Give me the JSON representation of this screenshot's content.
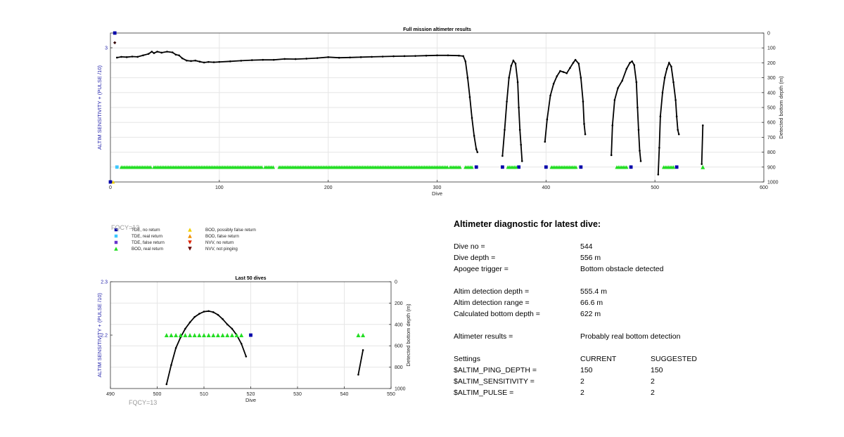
{
  "chart_data": [
    {
      "type": "line",
      "title": "Full mission altimeter results",
      "xlabel": "Dive",
      "ylabel_left": "ALTIM SENSITIVITY + (PULSE /10)",
      "ylabel_right": "Detected bottom depth (m)",
      "xlim": [
        0,
        600
      ],
      "y_left_ticks": [
        "3"
      ],
      "y_right_lim": [
        0,
        1000
      ],
      "y_right_reversed": true,
      "x_ticks": [
        "0",
        "100",
        "200",
        "300",
        "400",
        "500",
        "600"
      ],
      "y_right_ticks": [
        "0",
        "100",
        "200",
        "300",
        "400",
        "500",
        "600",
        "700",
        "800",
        "900",
        "1000"
      ],
      "grid": true,
      "series": [
        {
          "name": "Detected bottom depth",
          "kind": "line",
          "color": "#000000",
          "segments": [
            [
              [
                6,
                165
              ],
              [
                10,
                160
              ],
              [
                15,
                162
              ],
              [
                20,
                158
              ],
              [
                25,
                160
              ],
              [
                30,
                150
              ],
              [
                35,
                140
              ],
              [
                38,
                125
              ],
              [
                40,
                135
              ],
              [
                43,
                125
              ],
              [
                47,
                132
              ],
              [
                52,
                125
              ],
              [
                57,
                130
              ],
              [
                60,
                145
              ],
              [
                63,
                150
              ],
              [
                66,
                170
              ],
              [
                70,
                185
              ],
              [
                74,
                188
              ],
              [
                78,
                185
              ],
              [
                82,
                192
              ],
              [
                86,
                198
              ],
              [
                90,
                194
              ],
              [
                95,
                196
              ],
              [
                100,
                194
              ],
              [
                110,
                190
              ],
              [
                120,
                186
              ],
              [
                130,
                182
              ],
              [
                140,
                180
              ],
              [
                150,
                180
              ],
              [
                160,
                174
              ],
              [
                170,
                175
              ],
              [
                180,
                172
              ],
              [
                190,
                168
              ],
              [
                200,
                162
              ],
              [
                210,
                166
              ],
              [
                220,
                164
              ],
              [
                230,
                162
              ],
              [
                240,
                160
              ],
              [
                250,
                158
              ],
              [
                260,
                156
              ],
              [
                270,
                155
              ],
              [
                280,
                154
              ],
              [
                290,
                152
              ],
              [
                300,
                150
              ],
              [
                310,
                150
              ],
              [
                320,
                152
              ],
              [
                324,
                155
              ],
              [
                326,
                190
              ],
              [
                328,
                300
              ],
              [
                330,
                430
              ],
              [
                332,
                570
              ],
              [
                334,
                690
              ],
              [
                336,
                780
              ],
              [
                337,
                800
              ]
            ],
            [
              [
                360,
                825
              ],
              [
                362,
                650
              ],
              [
                364,
                460
              ],
              [
                366,
                300
              ],
              [
                368,
                220
              ],
              [
                370,
                185
              ],
              [
                372,
                205
              ],
              [
                374,
                330
              ],
              [
                375,
                500
              ],
              [
                376,
                650
              ],
              [
                377,
                750
              ],
              [
                378,
                860
              ]
            ],
            [
              [
                399,
                730
              ],
              [
                401,
                580
              ],
              [
                404,
                420
              ],
              [
                407,
                340
              ],
              [
                410,
                290
              ],
              [
                413,
                255
              ],
              [
                416,
                262
              ],
              [
                419,
                270
              ],
              [
                422,
                235
              ],
              [
                425,
                200
              ],
              [
                427,
                180
              ],
              [
                430,
                205
              ],
              [
                432,
                300
              ],
              [
                434,
                460
              ],
              [
                435,
                610
              ],
              [
                436,
                680
              ]
            ],
            [
              [
                460,
                820
              ],
              [
                461,
                620
              ],
              [
                463,
                450
              ],
              [
                466,
                370
              ],
              [
                470,
                320
              ],
              [
                474,
                240
              ],
              [
                477,
                200
              ],
              [
                479,
                190
              ],
              [
                481,
                215
              ],
              [
                483,
                330
              ],
              [
                484,
                500
              ],
              [
                485,
                650
              ],
              [
                486,
                790
              ],
              [
                487,
                860
              ]
            ],
            [
              [
                503,
                950
              ],
              [
                504,
                770
              ],
              [
                505,
                560
              ],
              [
                507,
                400
              ],
              [
                509,
                300
              ],
              [
                511,
                240
              ],
              [
                513,
                200
              ],
              [
                515,
                225
              ],
              [
                517,
                330
              ],
              [
                519,
                450
              ],
              [
                520,
                560
              ],
              [
                521,
                650
              ],
              [
                522,
                680
              ]
            ],
            [
              [
                543,
                880
              ],
              [
                544,
                620
              ]
            ]
          ]
        },
        {
          "name": "TDE, no return",
          "kind": "square",
          "color": "#0000aa",
          "points": [
            [
              4,
              0
            ],
            [
              336,
              900
            ],
            [
              360,
              900
            ],
            [
              375,
              900
            ],
            [
              400,
              900
            ],
            [
              432,
              900
            ],
            [
              478,
              900
            ],
            [
              520,
              900
            ]
          ]
        },
        {
          "name": "TDE, real return",
          "kind": "square",
          "color": "#3cc8ff",
          "points": [
            [
              6,
              900
            ]
          ]
        },
        {
          "name": "BOD, real return",
          "kind": "triangle",
          "color": "#22dd22",
          "ranges": [
            [
              10,
              37
            ],
            [
              40,
              140
            ],
            [
              142,
              150
            ],
            [
              155,
              310
            ],
            [
              312,
              322
            ],
            [
              326,
              332
            ],
            [
              365,
              373
            ],
            [
              405,
              428
            ],
            [
              465,
              475
            ],
            [
              508,
              518
            ]
          ],
          "points": [
            [
              544,
              900
            ]
          ]
        },
        {
          "name": "NVV, not pinging",
          "kind": "diamond",
          "color": "#330000",
          "points": [
            [
              4,
              65
            ]
          ]
        }
      ]
    },
    {
      "type": "line",
      "title": "Last 50 dives",
      "xlabel": "Dive",
      "ylabel_left": "ALTIM SENSITIVITY + (PULSE /10)",
      "ylabel_right": "Detected bottom depth (m)",
      "xlim": [
        490,
        550
      ],
      "x_ticks": [
        "490",
        "500",
        "510",
        "520",
        "530",
        "540",
        "550"
      ],
      "y_left_lim": [
        2.1,
        2.3
      ],
      "y_left_ticks": [
        "2.3",
        "2.2"
      ],
      "y_right_lim": [
        0,
        1000
      ],
      "y_right_ticks": [
        "0",
        "200",
        "400",
        "600",
        "800",
        "1000"
      ],
      "y_right_reversed": true,
      "grid": true,
      "series": [
        {
          "name": "Detected bottom depth",
          "kind": "line",
          "color": "#000000",
          "segments": [
            [
              [
                502,
                960
              ],
              [
                503,
                780
              ],
              [
                504,
                620
              ],
              [
                505,
                520
              ],
              [
                506,
                440
              ],
              [
                507,
                380
              ],
              [
                508,
                330
              ],
              [
                509,
                300
              ],
              [
                510,
                280
              ],
              [
                511,
                275
              ],
              [
                512,
                285
              ],
              [
                513,
                310
              ],
              [
                514,
                350
              ],
              [
                515,
                400
              ],
              [
                516,
                440
              ],
              [
                517,
                500
              ],
              [
                518,
                580
              ],
              [
                519,
                700
              ]
            ],
            [
              [
                543,
                870
              ],
              [
                544,
                640
              ]
            ]
          ]
        },
        {
          "name": "BOD, real return",
          "kind": "triangle",
          "color": "#22dd22",
          "values_left": [
            [
              502,
              2.2
            ],
            [
              503,
              2.2
            ],
            [
              504,
              2.2
            ],
            [
              505,
              2.2
            ],
            [
              506,
              2.2
            ],
            [
              507,
              2.2
            ],
            [
              508,
              2.2
            ],
            [
              509,
              2.2
            ],
            [
              510,
              2.2
            ],
            [
              511,
              2.2
            ],
            [
              512,
              2.2
            ],
            [
              513,
              2.2
            ],
            [
              514,
              2.2
            ],
            [
              515,
              2.2
            ],
            [
              516,
              2.2
            ],
            [
              517,
              2.2
            ],
            [
              518,
              2.2
            ],
            [
              543,
              2.2
            ],
            [
              544,
              2.2
            ]
          ]
        },
        {
          "name": "TDE, no return",
          "kind": "square",
          "color": "#0000aa",
          "values_left": [
            [
              520,
              2.2
            ]
          ]
        }
      ]
    }
  ],
  "fqcy_labels": [
    "FQCY=13",
    "FQCY=13"
  ],
  "legend": {
    "left": [
      {
        "label": "TDE, no return",
        "color": "#0000aa",
        "marker": "square"
      },
      {
        "label": "TDE, real return",
        "color": "#3cc8ff",
        "marker": "square"
      },
      {
        "label": "TDE, false return",
        "color": "#6633cc",
        "marker": "square"
      },
      {
        "label": "BOD, real return",
        "color": "#22dd22",
        "marker": "triangle-up"
      }
    ],
    "right": [
      {
        "label": "BOD, possibly false return",
        "color": "#f0d000",
        "marker": "triangle-up"
      },
      {
        "label": "BOD, false return",
        "color": "#f09000",
        "marker": "triangle-up"
      },
      {
        "label": "NVV, no return",
        "color": "#dd2200",
        "marker": "triangle-down"
      },
      {
        "label": "NVV, not pinging",
        "color": "#660000",
        "marker": "triangle-down"
      }
    ]
  },
  "diagnostic": {
    "title": "Altimeter diagnostic for latest dive:",
    "dive_no_label": "Dive no =",
    "dive_no": "544",
    "dive_depth_label": "Dive depth =",
    "dive_depth": "556 m",
    "apogee_label": "Apogee trigger =",
    "apogee": "Bottom obstacle detected",
    "altim_depth_label": "Altim detection depth =",
    "altim_depth": "555.4 m",
    "altim_range_label": "Altim detection range =",
    "altim_range": "66.6 m",
    "calc_depth_label": "Calculated bottom depth =",
    "calc_depth": "622 m",
    "results_label": "Altimeter results =",
    "results": "Probably real bottom detection",
    "settings_label": "Settings",
    "current_label": "CURRENT",
    "suggested_label": "SUGGESTED",
    "settings": [
      {
        "name": "$ALTIM_PING_DEPTH =",
        "current": "150",
        "suggested": "150"
      },
      {
        "name": "$ALTIM_SENSITIVITY =",
        "current": "2",
        "suggested": "2"
      },
      {
        "name": "$ALTIM_PULSE =",
        "current": "2",
        "suggested": "2"
      }
    ]
  }
}
